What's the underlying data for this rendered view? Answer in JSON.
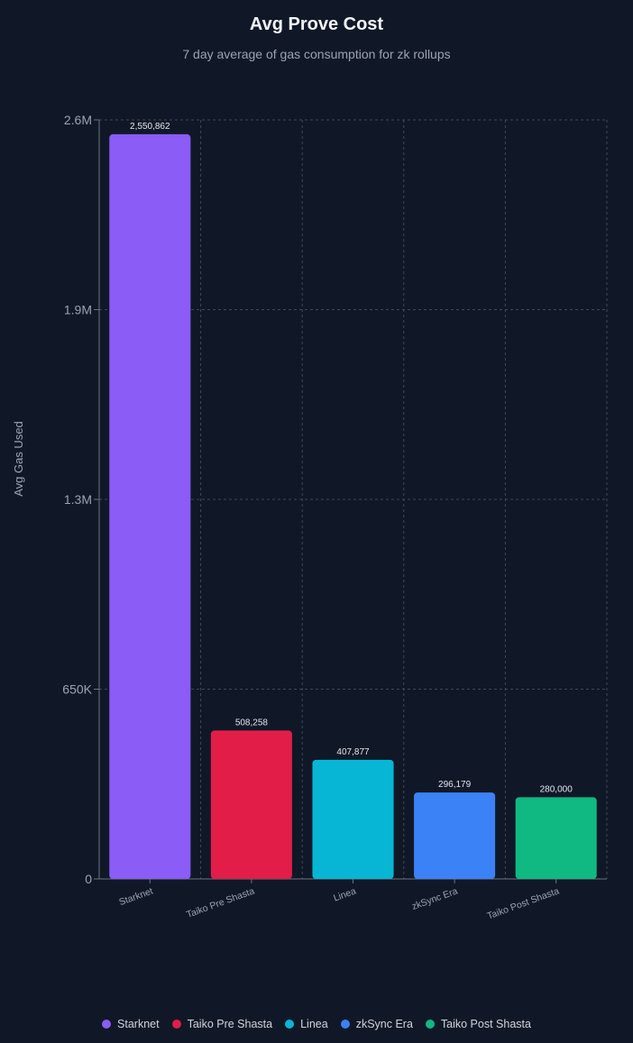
{
  "chart_data": {
    "type": "bar",
    "title": "Avg Prove Cost",
    "subtitle": "7 day average of gas consumption for zk rollups",
    "xlabel": "",
    "ylabel": "Avg Gas Used",
    "categories": [
      "Starknet",
      "Taiko Pre Shasta",
      "Linea",
      "zkSync Era",
      "Taiko Post Shasta"
    ],
    "values": [
      2550862,
      508258,
      407877,
      296179,
      280000
    ],
    "value_labels": [
      "2,550,862",
      "508,258",
      "407,877",
      "296,179",
      "280,000"
    ],
    "colors": [
      "#8b5cf6",
      "#e11d48",
      "#06b6d4",
      "#3b82f6",
      "#10b981"
    ],
    "ylim": [
      0,
      2600000
    ],
    "yticks": [
      0,
      650000,
      1300000,
      1950000,
      2600000
    ],
    "ytick_labels": [
      "0",
      "650K",
      "1.3M",
      "1.9M",
      "2.6M"
    ],
    "grid": true,
    "legend_position": "bottom"
  }
}
